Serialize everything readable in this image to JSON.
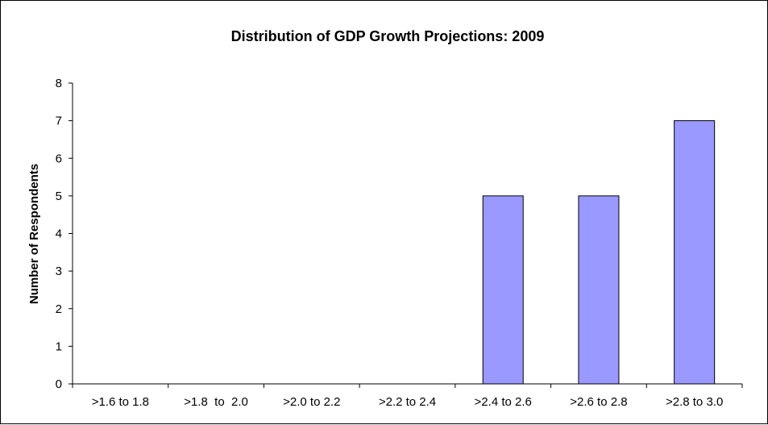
{
  "chart_data": {
    "type": "bar",
    "title": "Distribution of GDP Growth Projections: 2009",
    "xlabel": "",
    "ylabel": "Number of Respondents",
    "categories": [
      ">1.6 to 1.8",
      ">1.8  to  2.0",
      ">2.0 to 2.2",
      ">2.2 to 2.4",
      ">2.4 to 2.6",
      ">2.6 to 2.8",
      ">2.8 to 3.0"
    ],
    "values": [
      0,
      0,
      0,
      0,
      5,
      5,
      7
    ],
    "ylim": [
      0,
      8
    ],
    "yticks": [
      "0",
      "1",
      "2",
      "3",
      "4",
      "5",
      "6",
      "7",
      "8"
    ],
    "grid": false,
    "legend": "none",
    "colors": {
      "bar_fill": "#9999ff",
      "bar_stroke": "#000000",
      "axis": "#000000"
    }
  }
}
